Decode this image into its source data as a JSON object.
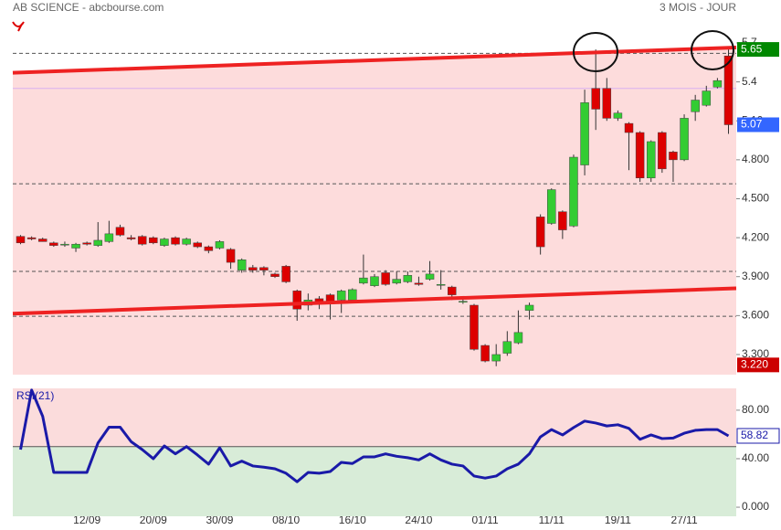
{
  "chart_data": [
    {
      "type": "candlestick",
      "title": "AB SCIENCE - abcbourse.com",
      "subtitle": "3 MOIS - JOUR",
      "categories": [
        null,
        null,
        null,
        null,
        null,
        null,
        "12/09",
        null,
        null,
        null,
        null,
        null,
        "20/09",
        null,
        null,
        null,
        null,
        null,
        "30/09",
        null,
        null,
        null,
        null,
        null,
        "08/10",
        null,
        null,
        null,
        null,
        null,
        "16/10",
        null,
        null,
        null,
        null,
        null,
        "24/10",
        null,
        null,
        null,
        null,
        null,
        "01/11",
        null,
        null,
        null,
        null,
        null,
        "11/11",
        null,
        null,
        null,
        null,
        null,
        "19/11",
        null,
        null,
        null,
        null,
        null,
        "27/11",
        null,
        null,
        null,
        null
      ],
      "open": [
        4.21,
        4.2,
        4.19,
        4.16,
        4.15,
        4.12,
        4.16,
        4.14,
        4.17,
        4.28,
        4.2,
        4.21,
        4.2,
        4.14,
        4.2,
        4.15,
        4.16,
        4.13,
        4.12,
        4.11,
        3.95,
        3.97,
        3.97,
        3.92,
        3.98,
        3.79,
        3.68,
        3.73,
        3.76,
        3.72,
        3.72,
        3.85,
        3.83,
        3.93,
        3.85,
        3.86,
        3.85,
        3.88,
        3.84,
        3.82,
        3.71,
        3.68,
        3.37,
        3.25,
        3.31,
        3.39,
        3.64,
        4.36,
        4.31,
        4.4,
        4.29,
        4.76,
        5.35,
        5.35,
        5.12,
        5.08,
        5.01,
        4.66,
        5.01,
        4.86,
        4.8,
        5.17,
        5.22,
        5.36,
        5.6
      ],
      "high": [
        4.22,
        4.21,
        4.2,
        4.17,
        4.17,
        4.16,
        4.17,
        4.32,
        4.33,
        4.3,
        4.22,
        4.22,
        4.21,
        4.2,
        4.21,
        4.2,
        4.17,
        4.14,
        4.18,
        4.12,
        4.04,
        3.99,
        3.98,
        3.93,
        3.99,
        3.8,
        3.77,
        3.75,
        3.77,
        3.8,
        3.81,
        4.07,
        3.92,
        3.95,
        3.94,
        3.94,
        3.9,
        4.02,
        3.95,
        3.83,
        3.75,
        3.69,
        3.38,
        3.38,
        3.48,
        3.64,
        3.7,
        4.38,
        4.58,
        4.41,
        4.84,
        5.34,
        5.65,
        5.43,
        5.18,
        5.09,
        5.02,
        4.95,
        5.02,
        4.87,
        5.15,
        5.3,
        5.37,
        5.43,
        5.65
      ],
      "low": [
        4.15,
        4.18,
        4.17,
        4.13,
        4.13,
        4.09,
        4.14,
        4.13,
        4.16,
        4.21,
        4.18,
        4.14,
        4.15,
        4.13,
        4.14,
        4.14,
        4.12,
        4.08,
        4.11,
        3.96,
        3.93,
        3.93,
        3.91,
        3.89,
        3.85,
        3.56,
        3.64,
        3.65,
        3.57,
        3.62,
        3.7,
        3.84,
        3.82,
        3.83,
        3.84,
        3.85,
        3.83,
        3.87,
        3.8,
        3.72,
        3.69,
        3.33,
        3.24,
        3.21,
        3.29,
        3.38,
        3.57,
        4.07,
        4.3,
        4.19,
        4.28,
        4.68,
        5.03,
        5.1,
        5.1,
        4.72,
        4.63,
        4.63,
        4.7,
        4.63,
        4.79,
        5.1,
        5.21,
        5.35,
        5.0
      ],
      "close": [
        4.16,
        4.19,
        4.17,
        4.14,
        4.15,
        4.15,
        4.15,
        4.18,
        4.23,
        4.22,
        4.19,
        4.15,
        4.16,
        4.19,
        4.15,
        4.19,
        4.13,
        4.1,
        4.17,
        4.01,
        4.03,
        3.95,
        3.95,
        3.9,
        3.86,
        3.65,
        3.72,
        3.7,
        3.69,
        3.79,
        3.8,
        3.89,
        3.9,
        3.84,
        3.88,
        3.91,
        3.84,
        3.92,
        3.84,
        3.76,
        3.71,
        3.34,
        3.25,
        3.3,
        3.4,
        3.47,
        3.68,
        4.13,
        4.57,
        4.26,
        4.82,
        5.24,
        5.19,
        5.12,
        5.16,
        5.01,
        4.66,
        4.94,
        4.73,
        4.8,
        5.12,
        5.26,
        5.33,
        5.41,
        5.07
      ],
      "up_color": "#33cc33",
      "down_color": "#dd0000",
      "ylim": [
        3.145,
        5.89
      ],
      "yticks": [
        {
          "value": 3.3,
          "label": "3.300"
        },
        {
          "value": 3.6,
          "label": "3.600"
        },
        {
          "value": 3.9,
          "label": "3.900"
        },
        {
          "value": 4.2,
          "label": "4.200"
        },
        {
          "value": 4.5,
          "label": "4.500"
        },
        {
          "value": 4.8,
          "label": "4.800"
        },
        {
          "value": 5.1,
          "label": "5.10"
        },
        5.4,
        5.7
      ],
      "trend_lines": [
        {
          "values": [
            5.47,
            5.665
          ]
        },
        {
          "values": [
            3.615,
            3.81
          ]
        }
      ],
      "trend_color": "#ee2222",
      "levels": [
        5.62,
        4.615,
        3.94,
        3.595
      ],
      "reference_line": 5.35,
      "tags": {
        "values": [
          5.65,
          5.07,
          3.22
        ],
        "value_labels": [
          "5.65",
          "5.07",
          "3.220"
        ],
        "colors": [
          "#008800",
          "#3366ff",
          "#cc0000"
        ]
      }
    },
    {
      "type": "line",
      "title": "RSI(21)",
      "values": [
        47.5,
        96.6,
        75,
        28.7,
        28.7,
        28.7,
        28.7,
        53,
        66,
        66,
        54,
        47.5,
        40,
        50.5,
        44,
        50,
        43,
        35.5,
        49,
        34,
        38,
        34,
        33,
        31.7,
        28,
        21,
        28.7,
        28,
        29.4,
        37,
        36,
        41.5,
        41.5,
        44,
        42,
        40.8,
        39,
        44,
        39,
        35.5,
        34,
        25.7,
        24,
        25.7,
        31.7,
        35.5,
        44,
        58,
        64,
        59.6,
        65.7,
        71,
        69.4,
        67,
        68,
        65,
        56,
        59.6,
        56.6,
        57,
        61,
        63.4,
        64,
        64,
        58.82
      ],
      "color": "#1a1aa8",
      "threshold": 50,
      "upper_color": "#fbdcdc",
      "lower_color": "#d8ecd8",
      "ylim": [
        -7.5,
        98
      ],
      "yticks": [
        {
          "value": 0,
          "label": "0.000"
        },
        {
          "value": 40,
          "label": "40.00"
        },
        {
          "value": 80,
          "label": "80.00"
        }
      ],
      "tag": 58.82
    }
  ]
}
